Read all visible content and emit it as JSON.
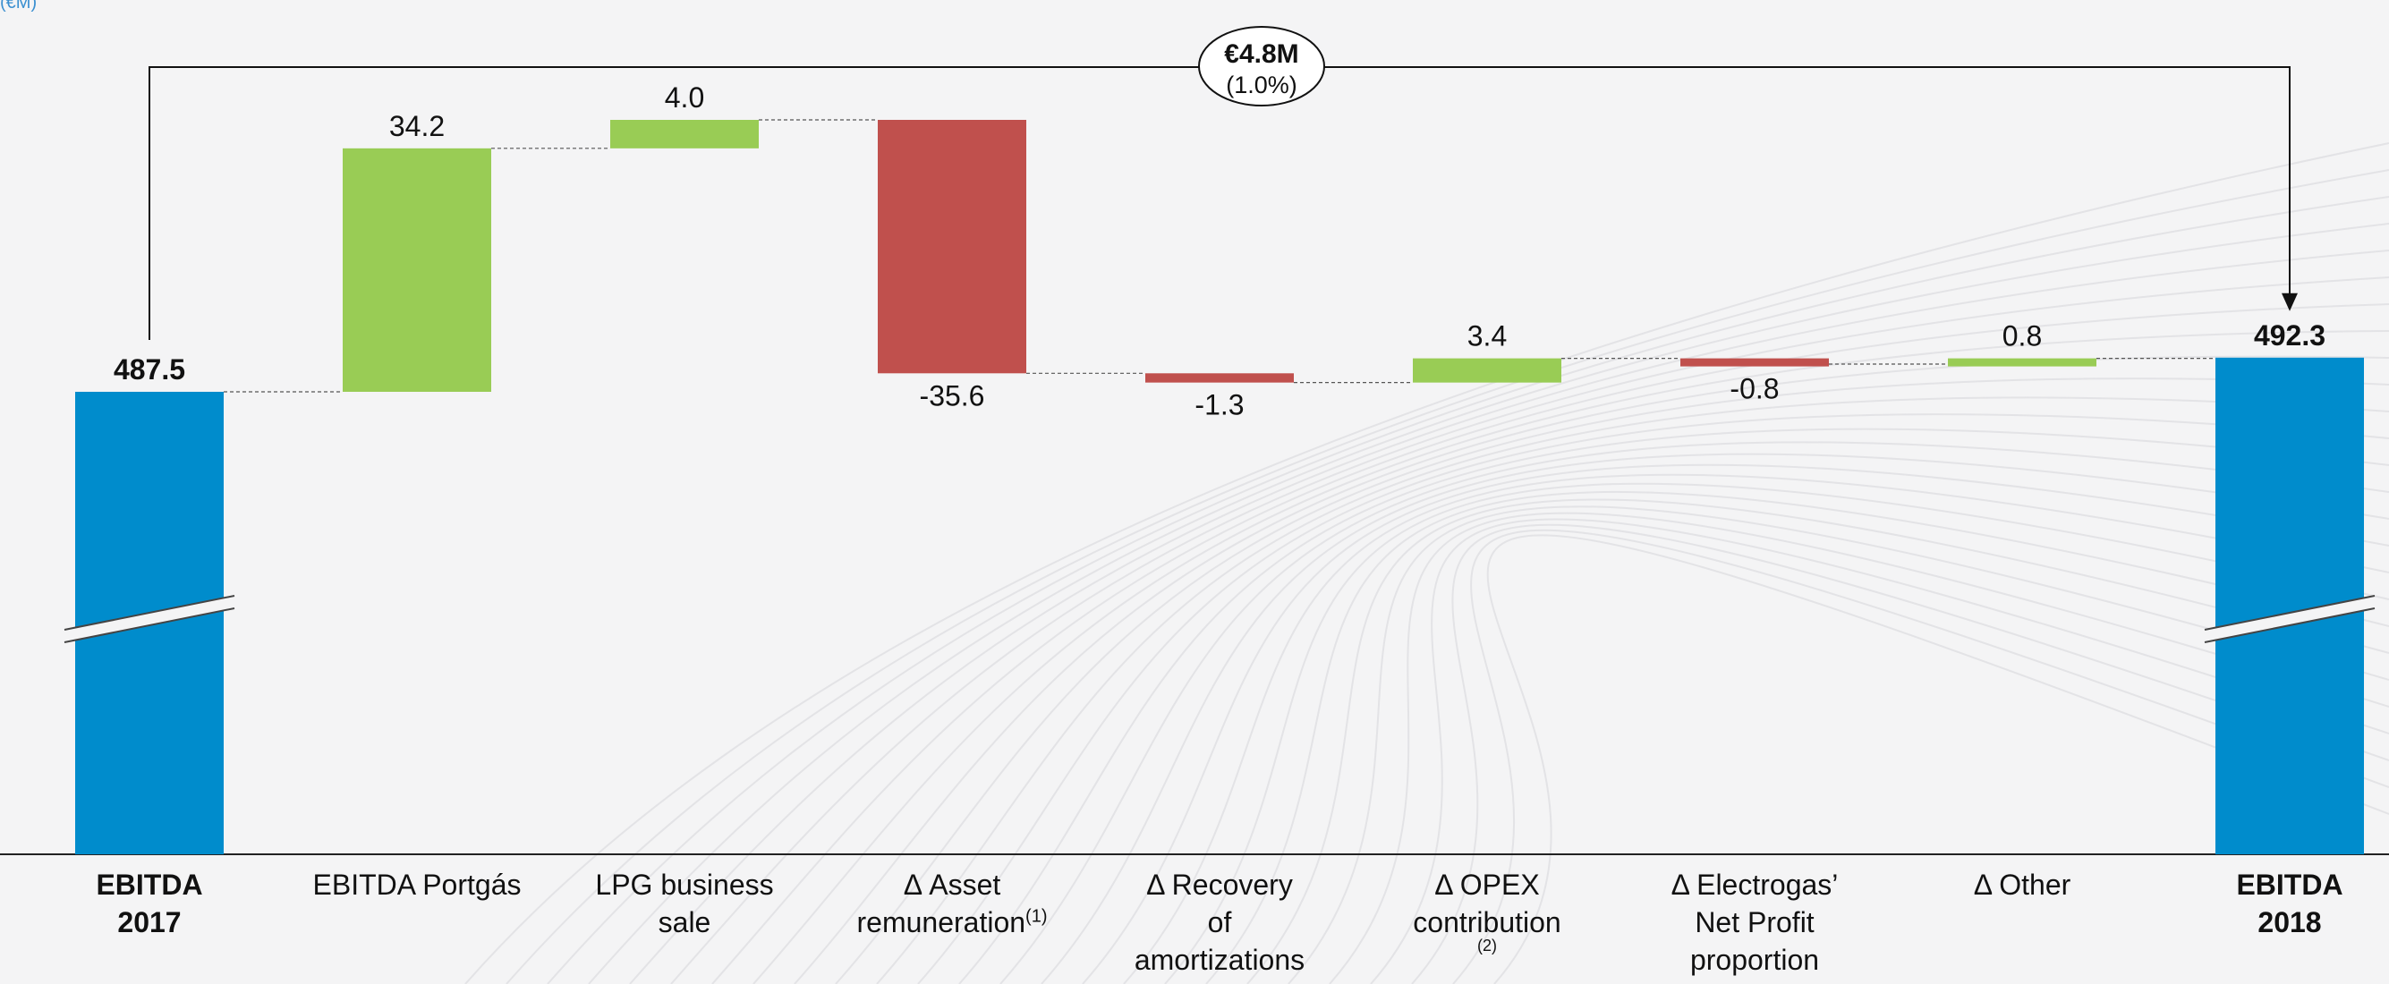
{
  "corner_text": "(€M)",
  "chart_data": {
    "type": "waterfall",
    "title": "",
    "xlabel": "",
    "ylabel": "",
    "categories": [
      {
        "lines": [
          "EBITDA",
          "2017"
        ],
        "bold": true
      },
      {
        "lines": [
          "EBITDA Portgás"
        ]
      },
      {
        "lines": [
          "LPG business sale"
        ]
      },
      {
        "lines": [
          "Δ Asset",
          "remuneration"
        ],
        "sup": "(1)"
      },
      {
        "lines": [
          "Δ Recovery",
          "of",
          "amortizations"
        ]
      },
      {
        "lines": [
          "Δ OPEX",
          "contribution"
        ],
        "note": "(2)"
      },
      {
        "lines": [
          "Δ Electrogas’",
          "Net Profit",
          "proportion"
        ]
      },
      {
        "lines": [
          "Δ Other"
        ]
      },
      {
        "lines": [
          "EBITDA",
          "2018"
        ],
        "bold": true
      }
    ],
    "values": [
      487.5,
      34.2,
      4.0,
      -35.6,
      -1.3,
      3.4,
      -0.8,
      0.8,
      492.3
    ],
    "labels": [
      "487.5",
      "34.2",
      "4.0",
      "-35.6",
      "-1.3",
      "3.4",
      "-0.8",
      "0.8",
      "492.3"
    ],
    "kinds": [
      "total",
      "delta",
      "delta",
      "delta",
      "delta",
      "delta",
      "delta",
      "delta",
      "total"
    ],
    "axis_break": true,
    "grid": false,
    "colors": {
      "total": "#008ccc",
      "increase": "#99cc55",
      "decrease": "#c0504d"
    },
    "delta_annotation": {
      "value": "€4.8M",
      "pct": "(1.0%)"
    }
  }
}
